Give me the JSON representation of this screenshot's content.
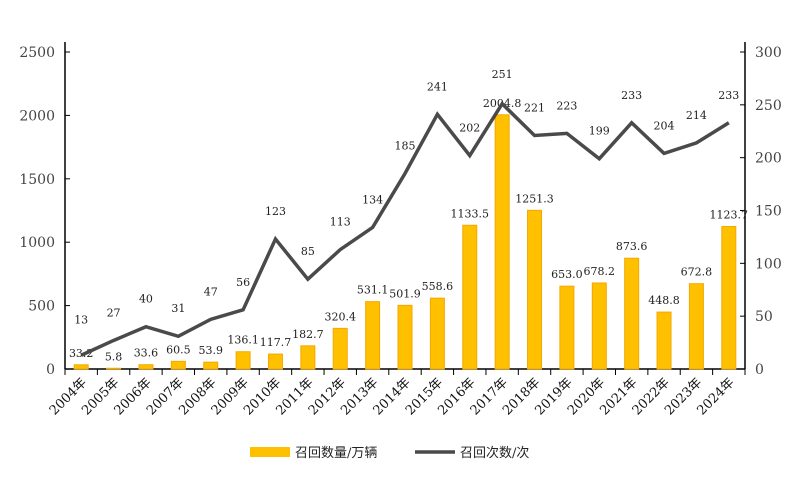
{
  "chart_data": {
    "type": "bar+line",
    "categories": [
      "2004年",
      "2005年",
      "2006年",
      "2007年",
      "2008年",
      "2009年",
      "2010年",
      "2011年",
      "2012年",
      "2013年",
      "2014年",
      "2015年",
      "2016年",
      "2017年",
      "2018年",
      "2019年",
      "2020年",
      "2021年",
      "2022年",
      "2023年",
      "2024年"
    ],
    "series": [
      {
        "name": "召回数量/万辆",
        "type": "bar",
        "axis": "left",
        "color": "#FFC000",
        "values": [
          33.2,
          5.8,
          33.6,
          60.5,
          53.9,
          136.1,
          117.7,
          182.7,
          320.4,
          531.1,
          501.9,
          558.6,
          1133.5,
          2004.8,
          1251.3,
          653.0,
          678.2,
          873.6,
          448.8,
          672.8,
          1123.7
        ],
        "labels": [
          "33.2",
          "5.8",
          "33.6",
          "60.5",
          "53.9",
          "136.1",
          "117.7",
          "182.7",
          "320.4",
          "531.1",
          "501.9",
          "558.6",
          "1133.5",
          "2004.8",
          "1251.3",
          "653.0",
          "678.2",
          "873.6",
          "448.8",
          "672.8",
          "1123.7"
        ]
      },
      {
        "name": "召回次数/次",
        "type": "line",
        "axis": "right",
        "color": "#4a4a4a",
        "values": [
          13,
          27,
          40,
          31,
          47,
          56,
          123,
          85,
          113,
          134,
          185,
          241,
          202,
          251,
          221,
          223,
          199,
          233,
          204,
          214,
          233
        ]
      }
    ],
    "y_left": {
      "range": [
        0,
        2500
      ],
      "ticks": [
        0,
        500,
        1000,
        1500,
        2000,
        2500
      ]
    },
    "y_right": {
      "range": [
        0,
        300
      ],
      "ticks": [
        0,
        50,
        100,
        150,
        200,
        250,
        300
      ]
    },
    "legend": "bottom-center",
    "grid": false
  }
}
